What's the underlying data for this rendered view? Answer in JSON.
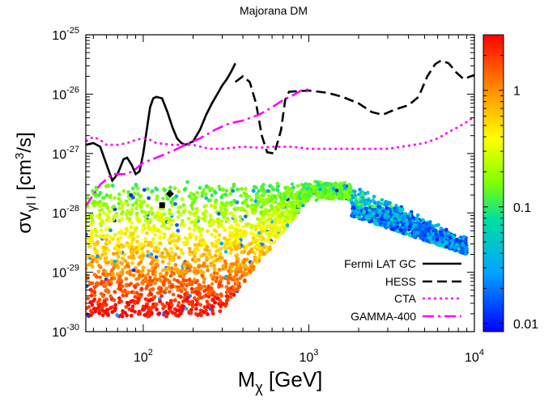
{
  "chart_data": {
    "type": "scatter",
    "title": "Majorana DM",
    "xlabel_main": "M",
    "xlabel_sub": "χ",
    "xlabel_unit": " [GeV]",
    "ylabel_main": "σv",
    "ylabel_sub": "γl l",
    "ylabel_unit_pre": " [cm",
    "ylabel_unit_sup": "3",
    "ylabel_unit_post": "/s]",
    "x_scale": "log",
    "y_scale": "log",
    "xlim": [
      45,
      10000
    ],
    "ylim": [
      1e-30,
      1e-25
    ],
    "x_ticks": [
      {
        "value": 100,
        "base": "10",
        "exp": "2"
      },
      {
        "value": 1000,
        "base": "10",
        "exp": "3"
      },
      {
        "value": 10000,
        "base": "10",
        "exp": "4"
      }
    ],
    "y_ticks": [
      {
        "value": 1e-30,
        "base": "10",
        "exp": "-30"
      },
      {
        "value": 1e-29,
        "base": "10",
        "exp": "-29"
      },
      {
        "value": 1e-28,
        "base": "10",
        "exp": "-28"
      },
      {
        "value": 1e-27,
        "base": "10",
        "exp": "-27"
      },
      {
        "value": 1e-26,
        "base": "10",
        "exp": "-26"
      },
      {
        "value": 1e-25,
        "base": "10",
        "exp": "-25"
      }
    ],
    "colorbar": {
      "scale": "log",
      "range": [
        0.0085,
        3.0
      ],
      "ticks": [
        {
          "value": 1,
          "label": "1"
        },
        {
          "value": 0.1,
          "label": "0.1"
        },
        {
          "value": 0.01,
          "label": "0.01"
        }
      ]
    },
    "legend_position": "lower-right",
    "series": [
      {
        "name": "Fermi LAT GC",
        "style": "solid",
        "color": "#000000",
        "points": [
          [
            45,
            1.4e-27
          ],
          [
            50,
            1.5e-27
          ],
          [
            55,
            1.3e-27
          ],
          [
            60,
            6.5e-28
          ],
          [
            65,
            3.5e-28
          ],
          [
            70,
            4.5e-28
          ],
          [
            76,
            8e-28
          ],
          [
            80,
            8.5e-28
          ],
          [
            85,
            6.5e-28
          ],
          [
            90,
            4.5e-28
          ],
          [
            95,
            5e-28
          ],
          [
            100,
            1e-27
          ],
          [
            105,
            2.5e-27
          ],
          [
            110,
            6e-27
          ],
          [
            115,
            8.5e-27
          ],
          [
            120,
            9e-27
          ],
          [
            130,
            8.5e-27
          ],
          [
            140,
            5e-27
          ],
          [
            150,
            2.8e-27
          ],
          [
            160,
            1.8e-27
          ],
          [
            170,
            1.5e-27
          ],
          [
            180,
            1.4e-27
          ],
          [
            200,
            1.6e-27
          ],
          [
            220,
            2.5e-27
          ],
          [
            240,
            4.5e-27
          ],
          [
            260,
            7e-27
          ],
          [
            280,
            1e-26
          ],
          [
            300,
            1.4e-26
          ],
          [
            320,
            1.8e-26
          ],
          [
            340,
            2.4e-26
          ],
          [
            360,
            3.3e-26
          ]
        ]
      },
      {
        "name": "HESS",
        "style": "dashed",
        "color": "#000000",
        "points": [
          [
            360,
            1.6e-26
          ],
          [
            400,
            2e-26
          ],
          [
            440,
            1.6e-26
          ],
          [
            480,
            7e-27
          ],
          [
            520,
            2e-27
          ],
          [
            560,
            1.05e-27
          ],
          [
            620,
            1e-27
          ],
          [
            680,
            2.5e-27
          ],
          [
            720,
            8e-27
          ],
          [
            760,
            1.1e-26
          ],
          [
            1000,
            1.15e-26
          ],
          [
            1300,
            1.05e-26
          ],
          [
            1600,
            9e-27
          ],
          [
            2000,
            7e-27
          ],
          [
            2400,
            5e-27
          ],
          [
            2800,
            4.5e-27
          ],
          [
            3300,
            5.5e-27
          ],
          [
            4000,
            6.5e-27
          ],
          [
            4600,
            9e-27
          ],
          [
            5200,
            2e-26
          ],
          [
            5800,
            3.2e-26
          ],
          [
            6300,
            3.7e-26
          ],
          [
            7000,
            3.3e-26
          ],
          [
            7800,
            2.3e-26
          ],
          [
            8600,
            1.8e-26
          ],
          [
            10000,
            2.1e-26
          ]
        ]
      },
      {
        "name": "CTA",
        "style": "dotted",
        "color": "#ff00ff",
        "points": [
          [
            45,
            1.6e-27
          ],
          [
            50,
            1.9e-27
          ],
          [
            55,
            1.7e-27
          ],
          [
            60,
            1.4e-27
          ],
          [
            70,
            1.4e-27
          ],
          [
            80,
            1.5e-27
          ],
          [
            90,
            1.7e-27
          ],
          [
            100,
            1.8e-27
          ],
          [
            110,
            1.7e-27
          ],
          [
            120,
            1.5e-27
          ],
          [
            150,
            1.4e-27
          ],
          [
            200,
            1.4e-27
          ],
          [
            250,
            1.2e-27
          ],
          [
            300,
            1.2e-27
          ],
          [
            400,
            1.3e-27
          ],
          [
            500,
            1.25e-27
          ],
          [
            600,
            1.3e-27
          ],
          [
            800,
            1.3e-27
          ],
          [
            1000,
            1.2e-27
          ],
          [
            1500,
            1.2e-27
          ],
          [
            2000,
            1.2e-27
          ],
          [
            3000,
            1.2e-27
          ],
          [
            4000,
            1.35e-27
          ],
          [
            5000,
            1.5e-27
          ],
          [
            6000,
            1.8e-27
          ],
          [
            7000,
            2.3e-27
          ],
          [
            8000,
            2.8e-27
          ],
          [
            9000,
            3.4e-27
          ],
          [
            10000,
            4.2e-27
          ]
        ]
      },
      {
        "name": "GAMMA-400",
        "style": "dashdot",
        "color": "#ff00ff",
        "points": [
          [
            45,
            1.3e-28
          ],
          [
            55,
            3e-28
          ],
          [
            65,
            4.5e-28
          ],
          [
            80,
            4.5e-28
          ],
          [
            90,
            5.5e-28
          ],
          [
            100,
            7e-28
          ],
          [
            120,
            8.5e-28
          ],
          [
            150,
            1.1e-27
          ],
          [
            180,
            1.4e-27
          ],
          [
            220,
            1.8e-27
          ],
          [
            270,
            2.5e-27
          ],
          [
            330,
            3.2e-27
          ],
          [
            400,
            3.6e-27
          ],
          [
            500,
            4.5e-27
          ],
          [
            600,
            6e-27
          ],
          [
            700,
            8e-27
          ],
          [
            800,
            9.5e-27
          ],
          [
            900,
            1.15e-26
          ],
          [
            1000,
            1.2e-26
          ]
        ]
      }
    ],
    "markers": [
      {
        "shape": "square",
        "x": 130,
        "y": 1.35e-28
      },
      {
        "shape": "diamond",
        "x": 145,
        "y": 2.1e-28
      }
    ],
    "scatter_description": {
      "color_encodes": "colorbar value",
      "point_count": 6000,
      "x_range": [
        45,
        9000
      ],
      "upper_envelope_main": 2.8e-28,
      "transition_x": 1800
    }
  }
}
